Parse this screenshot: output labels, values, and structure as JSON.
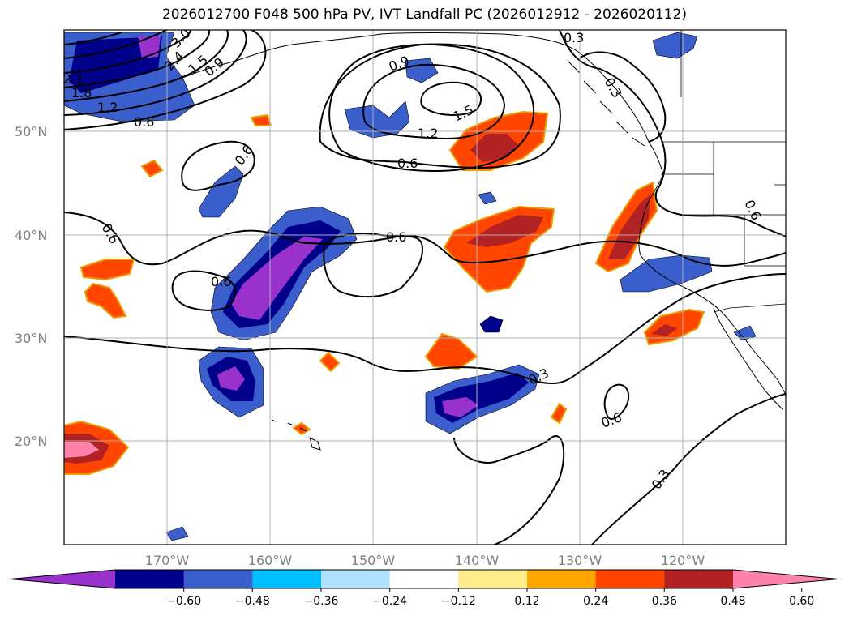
{
  "title": "2026012700 F048 500 hPa PV, IVT Landfall PC (2026012912 - 2026020112)",
  "lat_labels": [
    "50°N",
    "40°N",
    "30°N",
    "20°N"
  ],
  "lon_labels": [
    "170°W",
    "160°W",
    "150°W",
    "140°W",
    "130°W",
    "120°W"
  ],
  "contour_labels": [
    "2.1",
    "1.8",
    "1.2",
    "0.6",
    "0.9",
    "1.5",
    "2.4",
    "3.0",
    "0.9",
    "1.5",
    "1.2",
    "0.6",
    "0.6",
    "0.3",
    "0.3",
    "0.6",
    "0.6",
    "0.6",
    "0.6",
    "0.3",
    "0.6",
    "0.3"
  ],
  "colorbar": {
    "ticks": [
      "−0.60",
      "−0.48",
      "−0.36",
      "−0.24",
      "−0.12",
      "0.12",
      "0.24",
      "0.36",
      "0.48",
      "0.60"
    ],
    "colors": [
      "#9932cc",
      "#00008b",
      "#3a5fcd",
      "#00bfff",
      "#b0e2ff",
      "#ffffff",
      "#ffec8b",
      "#ffa500",
      "#ff4500",
      "#b22222",
      "#ff82ab"
    ]
  }
}
